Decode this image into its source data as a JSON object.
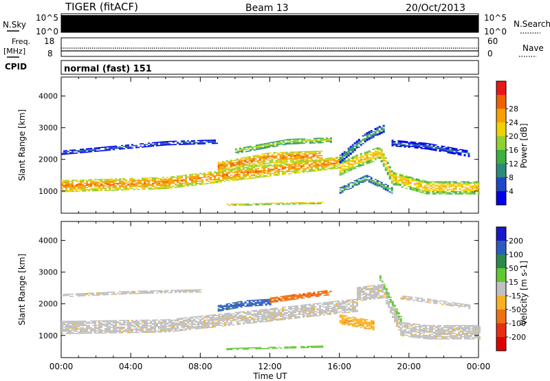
{
  "header": {
    "station": "TIGER (fitACF)",
    "beam": "Beam 13",
    "date": "20/Oct/2013"
  },
  "nsky": {
    "label": "N.Sky",
    "top_tick": "10^5",
    "bottom_tick": "10^0"
  },
  "nsearch": {
    "label": "N.Search",
    "top_tick": "10^5",
    "bottom_tick": "10^0"
  },
  "freq": {
    "label_line1": "Freq.",
    "label_line2": "[MHz]",
    "top_tick": "18",
    "bottom_tick": "8"
  },
  "nave": {
    "label": "Nave",
    "top_tick": "60",
    "bottom_tick": "0"
  },
  "cpid": {
    "label": "CPID",
    "text": "normal (fast) 151"
  },
  "x_axis": {
    "label": "Time UT",
    "ticks": [
      "00:00",
      "04:00",
      "08:00",
      "12:00",
      "16:00",
      "20:00",
      "00:00"
    ]
  },
  "chart_data": [
    {
      "type": "heatmap",
      "name": "power",
      "ylabel": "Slant Range [km]",
      "yticks": [
        "1000",
        "2000",
        "3000",
        "4000"
      ],
      "ylim": [
        300,
        4600
      ],
      "xlim_hours": [
        0,
        24
      ],
      "colorbar_label": "Power [dB]",
      "colorbar_ticks": [
        "4",
        "8",
        "12",
        "16",
        "20",
        "24",
        "28"
      ],
      "colors": [
        "#0000e8",
        "#1e46c8",
        "#2c8a78",
        "#3cb040",
        "#90d030",
        "#f0d000",
        "#f8a000",
        "#f06000",
        "#e81818"
      ],
      "bands": [
        {
          "x": [
            0,
            6,
            12,
            16
          ],
          "r": [
            1150,
            1250,
            1650,
            1900
          ],
          "w": 380,
          "c": 6
        },
        {
          "x": [
            16,
            17,
            18.3,
            19,
            21,
            24
          ],
          "r": [
            1700,
            1950,
            2200,
            1400,
            1100,
            1100
          ],
          "w": 420,
          "c": 5
        },
        {
          "x": [
            0,
            3,
            6,
            9
          ],
          "r": [
            2200,
            2350,
            2500,
            2550
          ],
          "w": 120,
          "c": 1
        },
        {
          "x": [
            9,
            12,
            15
          ],
          "r": [
            1750,
            2050,
            2100
          ],
          "w": 350,
          "c": 6
        },
        {
          "x": [
            10,
            13,
            15.5
          ],
          "r": [
            2250,
            2550,
            2600
          ],
          "w": 160,
          "c": 4
        },
        {
          "x": [
            16,
            17.5,
            18.6
          ],
          "r": [
            2000,
            2700,
            3000
          ],
          "w": 260,
          "c": 2
        },
        {
          "x": [
            19,
            21,
            23.5
          ],
          "r": [
            2500,
            2400,
            2150
          ],
          "w": 180,
          "c": 1
        },
        {
          "x": [
            9.5,
            12,
            15
          ],
          "r": [
            560,
            590,
            620
          ],
          "w": 60,
          "c": 5
        },
        {
          "x": [
            16,
            17.5,
            19
          ],
          "r": [
            1000,
            1400,
            1000
          ],
          "w": 180,
          "c": 3
        }
      ]
    },
    {
      "type": "heatmap",
      "name": "velocity",
      "ylabel": "Slant Range [km]",
      "yticks": [
        "1000",
        "2000",
        "3000",
        "4000"
      ],
      "ylim": [
        300,
        4600
      ],
      "xlim_hours": [
        0,
        24
      ],
      "colorbar_label": "Velocity [m s-1]",
      "colorbar_ticks": [
        "200",
        "100",
        "50",
        "15",
        "-15",
        "-50",
        "-100",
        "-200"
      ],
      "colors": [
        "#1818c8",
        "#2d5cc0",
        "#2a8a4a",
        "#60c830",
        "#c0c0c0",
        "#f8b020",
        "#f07010",
        "#e83010",
        "#e00000"
      ],
      "bands": [
        {
          "x": [
            0,
            6,
            12,
            16,
            17
          ],
          "r": [
            1250,
            1300,
            1650,
            1900,
            1950
          ],
          "w": 420,
          "c": 4
        },
        {
          "x": [
            17,
            18.5,
            19.5,
            21,
            24
          ],
          "r": [
            2300,
            2400,
            1200,
            1100,
            1100
          ],
          "w": 450,
          "c": 4
        },
        {
          "x": [
            0,
            4,
            8
          ],
          "r": [
            2250,
            2350,
            2400
          ],
          "w": 90,
          "c": 4
        },
        {
          "x": [
            9,
            10.5,
            12
          ],
          "r": [
            1850,
            2000,
            2050
          ],
          "w": 200,
          "c": 1
        },
        {
          "x": [
            12,
            14,
            15.5
          ],
          "r": [
            2100,
            2250,
            2350
          ],
          "w": 150,
          "c": 6
        },
        {
          "x": [
            16,
            17,
            18
          ],
          "r": [
            1500,
            1400,
            1300
          ],
          "w": 300,
          "c": 5
        },
        {
          "x": [
            18.3,
            19,
            19.6
          ],
          "r": [
            2800,
            2000,
            1400
          ],
          "w": 150,
          "c": 3
        },
        {
          "x": [
            9.5,
            12,
            15
          ],
          "r": [
            560,
            600,
            640
          ],
          "w": 55,
          "c": 3
        },
        {
          "x": [
            19.5,
            21,
            23.5
          ],
          "r": [
            2200,
            2100,
            1900
          ],
          "w": 140,
          "c": 4
        }
      ]
    }
  ]
}
